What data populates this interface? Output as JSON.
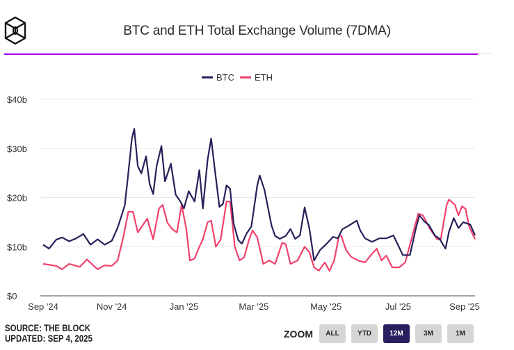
{
  "header": {
    "title": "BTC and ETH Total Exchange Volume (7DMA)",
    "logo": "the-block-cube-logo"
  },
  "footer": {
    "source": "SOURCE: THE BLOCK",
    "updated": "UPDATED: SEP 4, 2025"
  },
  "zoom": {
    "label": "ZOOM",
    "buttons": [
      "ALL",
      "YTD",
      "12M",
      "3M",
      "1M"
    ],
    "active": "12M"
  },
  "colors": {
    "btc": "#25205a",
    "eth": "#f0416c",
    "accent": "#a700f0"
  },
  "chart_data": {
    "type": "line",
    "title": "BTC and ETH Total Exchange Volume (7DMA)",
    "legend_position": "top",
    "grid": true,
    "ylim": [
      0,
      40
    ],
    "y_ticks": [
      "$0",
      "$10b",
      "$20b",
      "$30b",
      "$40b"
    ],
    "y_tick_values": [
      0,
      10,
      20,
      30,
      40
    ],
    "x_range": [
      "2024-09-04",
      "2025-09-04"
    ],
    "x_ticks": [
      {
        "label": "Sep '24",
        "date": "2024-09-01"
      },
      {
        "label": "Nov '24",
        "date": "2024-11-01"
      },
      {
        "label": "Jan '25",
        "date": "2025-01-01"
      },
      {
        "label": "Mar '25",
        "date": "2025-03-01"
      },
      {
        "label": "May '25",
        "date": "2025-05-01"
      },
      {
        "label": "Jul '25",
        "date": "2025-07-01"
      },
      {
        "label": "Sep '25",
        "date": "2025-09-01"
      }
    ],
    "series": [
      {
        "name": "BTC",
        "unit": "billion USD",
        "points": [
          [
            "2024-09-04",
            10.4
          ],
          [
            "2024-09-09",
            9.6
          ],
          [
            "2024-09-15",
            11.4
          ],
          [
            "2024-09-20",
            11.9
          ],
          [
            "2024-09-26",
            11.1
          ],
          [
            "2024-10-02",
            11.7
          ],
          [
            "2024-10-08",
            12.6
          ],
          [
            "2024-10-14",
            10.4
          ],
          [
            "2024-10-20",
            11.5
          ],
          [
            "2024-10-26",
            10.4
          ],
          [
            "2024-11-01",
            11.2
          ],
          [
            "2024-11-06",
            13.9
          ],
          [
            "2024-11-12",
            18.4
          ],
          [
            "2024-11-15",
            25
          ],
          [
            "2024-11-18",
            32
          ],
          [
            "2024-11-20",
            34
          ],
          [
            "2024-11-23",
            26.4
          ],
          [
            "2024-11-26",
            24.9
          ],
          [
            "2024-11-30",
            28.4
          ],
          [
            "2024-12-03",
            22.8
          ],
          [
            "2024-12-06",
            20.7
          ],
          [
            "2024-12-09",
            26.5
          ],
          [
            "2024-12-13",
            30.5
          ],
          [
            "2024-12-16",
            23.3
          ],
          [
            "2024-12-21",
            26.9
          ],
          [
            "2024-12-25",
            20.6
          ],
          [
            "2024-12-29",
            19.2
          ],
          [
            "2025-01-01",
            17.8
          ],
          [
            "2025-01-05",
            21.3
          ],
          [
            "2025-01-10",
            19.2
          ],
          [
            "2025-01-14",
            25.6
          ],
          [
            "2025-01-17",
            17.8
          ],
          [
            "2025-01-21",
            27.7
          ],
          [
            "2025-01-24",
            32
          ],
          [
            "2025-01-27",
            25.9
          ],
          [
            "2025-01-31",
            18.1
          ],
          [
            "2025-02-03",
            18.7
          ],
          [
            "2025-02-06",
            22.5
          ],
          [
            "2025-02-09",
            21.8
          ],
          [
            "2025-02-12",
            14.7
          ],
          [
            "2025-02-16",
            11.3
          ],
          [
            "2025-02-19",
            10.6
          ],
          [
            "2025-02-23",
            12.7
          ],
          [
            "2025-02-27",
            14.1
          ],
          [
            "2025-03-04",
            22.5
          ],
          [
            "2025-03-06",
            24.5
          ],
          [
            "2025-03-10",
            21.6
          ],
          [
            "2025-03-16",
            14.3
          ],
          [
            "2025-03-19",
            12.2
          ],
          [
            "2025-03-23",
            11.6
          ],
          [
            "2025-03-28",
            12.2
          ],
          [
            "2025-04-01",
            13.6
          ],
          [
            "2025-04-05",
            11.6
          ],
          [
            "2025-04-09",
            12.3
          ],
          [
            "2025-04-13",
            18
          ],
          [
            "2025-04-17",
            13.7
          ],
          [
            "2025-04-21",
            7.2
          ],
          [
            "2025-04-26",
            9.3
          ],
          [
            "2025-05-02",
            10.7
          ],
          [
            "2025-05-07",
            12
          ],
          [
            "2025-05-11",
            11.7
          ],
          [
            "2025-05-15",
            13.6
          ],
          [
            "2025-05-19",
            14.1
          ],
          [
            "2025-05-27",
            15.3
          ],
          [
            "2025-05-30",
            13.3
          ],
          [
            "2025-06-03",
            11.7
          ],
          [
            "2025-06-09",
            11
          ],
          [
            "2025-06-15",
            11.7
          ],
          [
            "2025-06-21",
            11.7
          ],
          [
            "2025-06-27",
            12.3
          ],
          [
            "2025-07-01",
            10.3
          ],
          [
            "2025-07-05",
            8.3
          ],
          [
            "2025-07-11",
            8.3
          ],
          [
            "2025-07-16",
            13.7
          ],
          [
            "2025-07-19",
            16.4
          ],
          [
            "2025-07-23",
            15.2
          ],
          [
            "2025-07-27",
            14.4
          ],
          [
            "2025-08-01",
            12.3
          ],
          [
            "2025-08-05",
            11.6
          ],
          [
            "2025-08-10",
            9.6
          ],
          [
            "2025-08-13",
            13.1
          ],
          [
            "2025-08-17",
            15.8
          ],
          [
            "2025-08-21",
            13.8
          ],
          [
            "2025-08-25",
            15
          ],
          [
            "2025-08-31",
            14.5
          ],
          [
            "2025-09-04",
            12.3
          ]
        ]
      },
      {
        "name": "ETH",
        "unit": "billion USD",
        "points": [
          [
            "2024-09-04",
            6.5
          ],
          [
            "2024-09-15",
            6.1
          ],
          [
            "2024-09-20",
            5.4
          ],
          [
            "2024-09-26",
            6.5
          ],
          [
            "2024-10-05",
            5.9
          ],
          [
            "2024-10-11",
            7.4
          ],
          [
            "2024-10-20",
            5.4
          ],
          [
            "2024-10-26",
            6.2
          ],
          [
            "2024-11-01",
            6.1
          ],
          [
            "2024-11-06",
            7.2
          ],
          [
            "2024-11-11",
            12.2
          ],
          [
            "2024-11-15",
            17.1
          ],
          [
            "2024-11-19",
            17.1
          ],
          [
            "2024-11-23",
            12.9
          ],
          [
            "2024-11-27",
            14.3
          ],
          [
            "2024-12-01",
            15.7
          ],
          [
            "2024-12-06",
            11.5
          ],
          [
            "2024-12-11",
            17.8
          ],
          [
            "2024-12-14",
            18.5
          ],
          [
            "2024-12-18",
            14.9
          ],
          [
            "2024-12-22",
            13.6
          ],
          [
            "2024-12-26",
            12.9
          ],
          [
            "2024-12-30",
            18.5
          ],
          [
            "2025-01-03",
            13.6
          ],
          [
            "2025-01-06",
            7.2
          ],
          [
            "2025-01-10",
            7.6
          ],
          [
            "2025-01-14",
            10
          ],
          [
            "2025-01-17",
            11.5
          ],
          [
            "2025-01-21",
            15
          ],
          [
            "2025-01-24",
            15.3
          ],
          [
            "2025-01-28",
            10
          ],
          [
            "2025-02-01",
            11.4
          ],
          [
            "2025-02-06",
            19.2
          ],
          [
            "2025-02-09",
            19.2
          ],
          [
            "2025-02-13",
            10
          ],
          [
            "2025-02-17",
            7.2
          ],
          [
            "2025-02-21",
            7.9
          ],
          [
            "2025-02-25",
            11.4
          ],
          [
            "2025-02-28",
            13.3
          ],
          [
            "2025-03-04",
            11.9
          ],
          [
            "2025-03-09",
            6.5
          ],
          [
            "2025-03-14",
            7.2
          ],
          [
            "2025-03-19",
            6.5
          ],
          [
            "2025-03-25",
            10.8
          ],
          [
            "2025-03-28",
            10.5
          ],
          [
            "2025-04-01",
            6.5
          ],
          [
            "2025-04-07",
            7.2
          ],
          [
            "2025-04-13",
            10
          ],
          [
            "2025-04-17",
            8.9
          ],
          [
            "2025-04-21",
            5.8
          ],
          [
            "2025-04-25",
            5.1
          ],
          [
            "2025-04-30",
            6.8
          ],
          [
            "2025-05-04",
            5.1
          ],
          [
            "2025-05-08",
            7.2
          ],
          [
            "2025-05-12",
            12.2
          ],
          [
            "2025-05-14",
            12.2
          ],
          [
            "2025-05-18",
            9.3
          ],
          [
            "2025-05-22",
            8
          ],
          [
            "2025-05-28",
            7.2
          ],
          [
            "2025-06-03",
            6.8
          ],
          [
            "2025-06-09",
            8.6
          ],
          [
            "2025-06-13",
            9.6
          ],
          [
            "2025-06-17",
            7.2
          ],
          [
            "2025-06-21",
            8.2
          ],
          [
            "2025-06-26",
            5.8
          ],
          [
            "2025-07-02",
            5.8
          ],
          [
            "2025-07-07",
            6.8
          ],
          [
            "2025-07-13",
            12.2
          ],
          [
            "2025-07-18",
            16.7
          ],
          [
            "2025-07-22",
            16.4
          ],
          [
            "2025-07-28",
            13.6
          ],
          [
            "2025-08-03",
            11.5
          ],
          [
            "2025-08-06",
            11.5
          ],
          [
            "2025-08-11",
            18.5
          ],
          [
            "2025-08-13",
            19.6
          ],
          [
            "2025-08-18",
            18.5
          ],
          [
            "2025-08-21",
            16.4
          ],
          [
            "2025-08-24",
            18.2
          ],
          [
            "2025-08-27",
            17.7
          ],
          [
            "2025-08-30",
            14.1
          ],
          [
            "2025-09-04",
            11.5
          ]
        ]
      }
    ]
  }
}
